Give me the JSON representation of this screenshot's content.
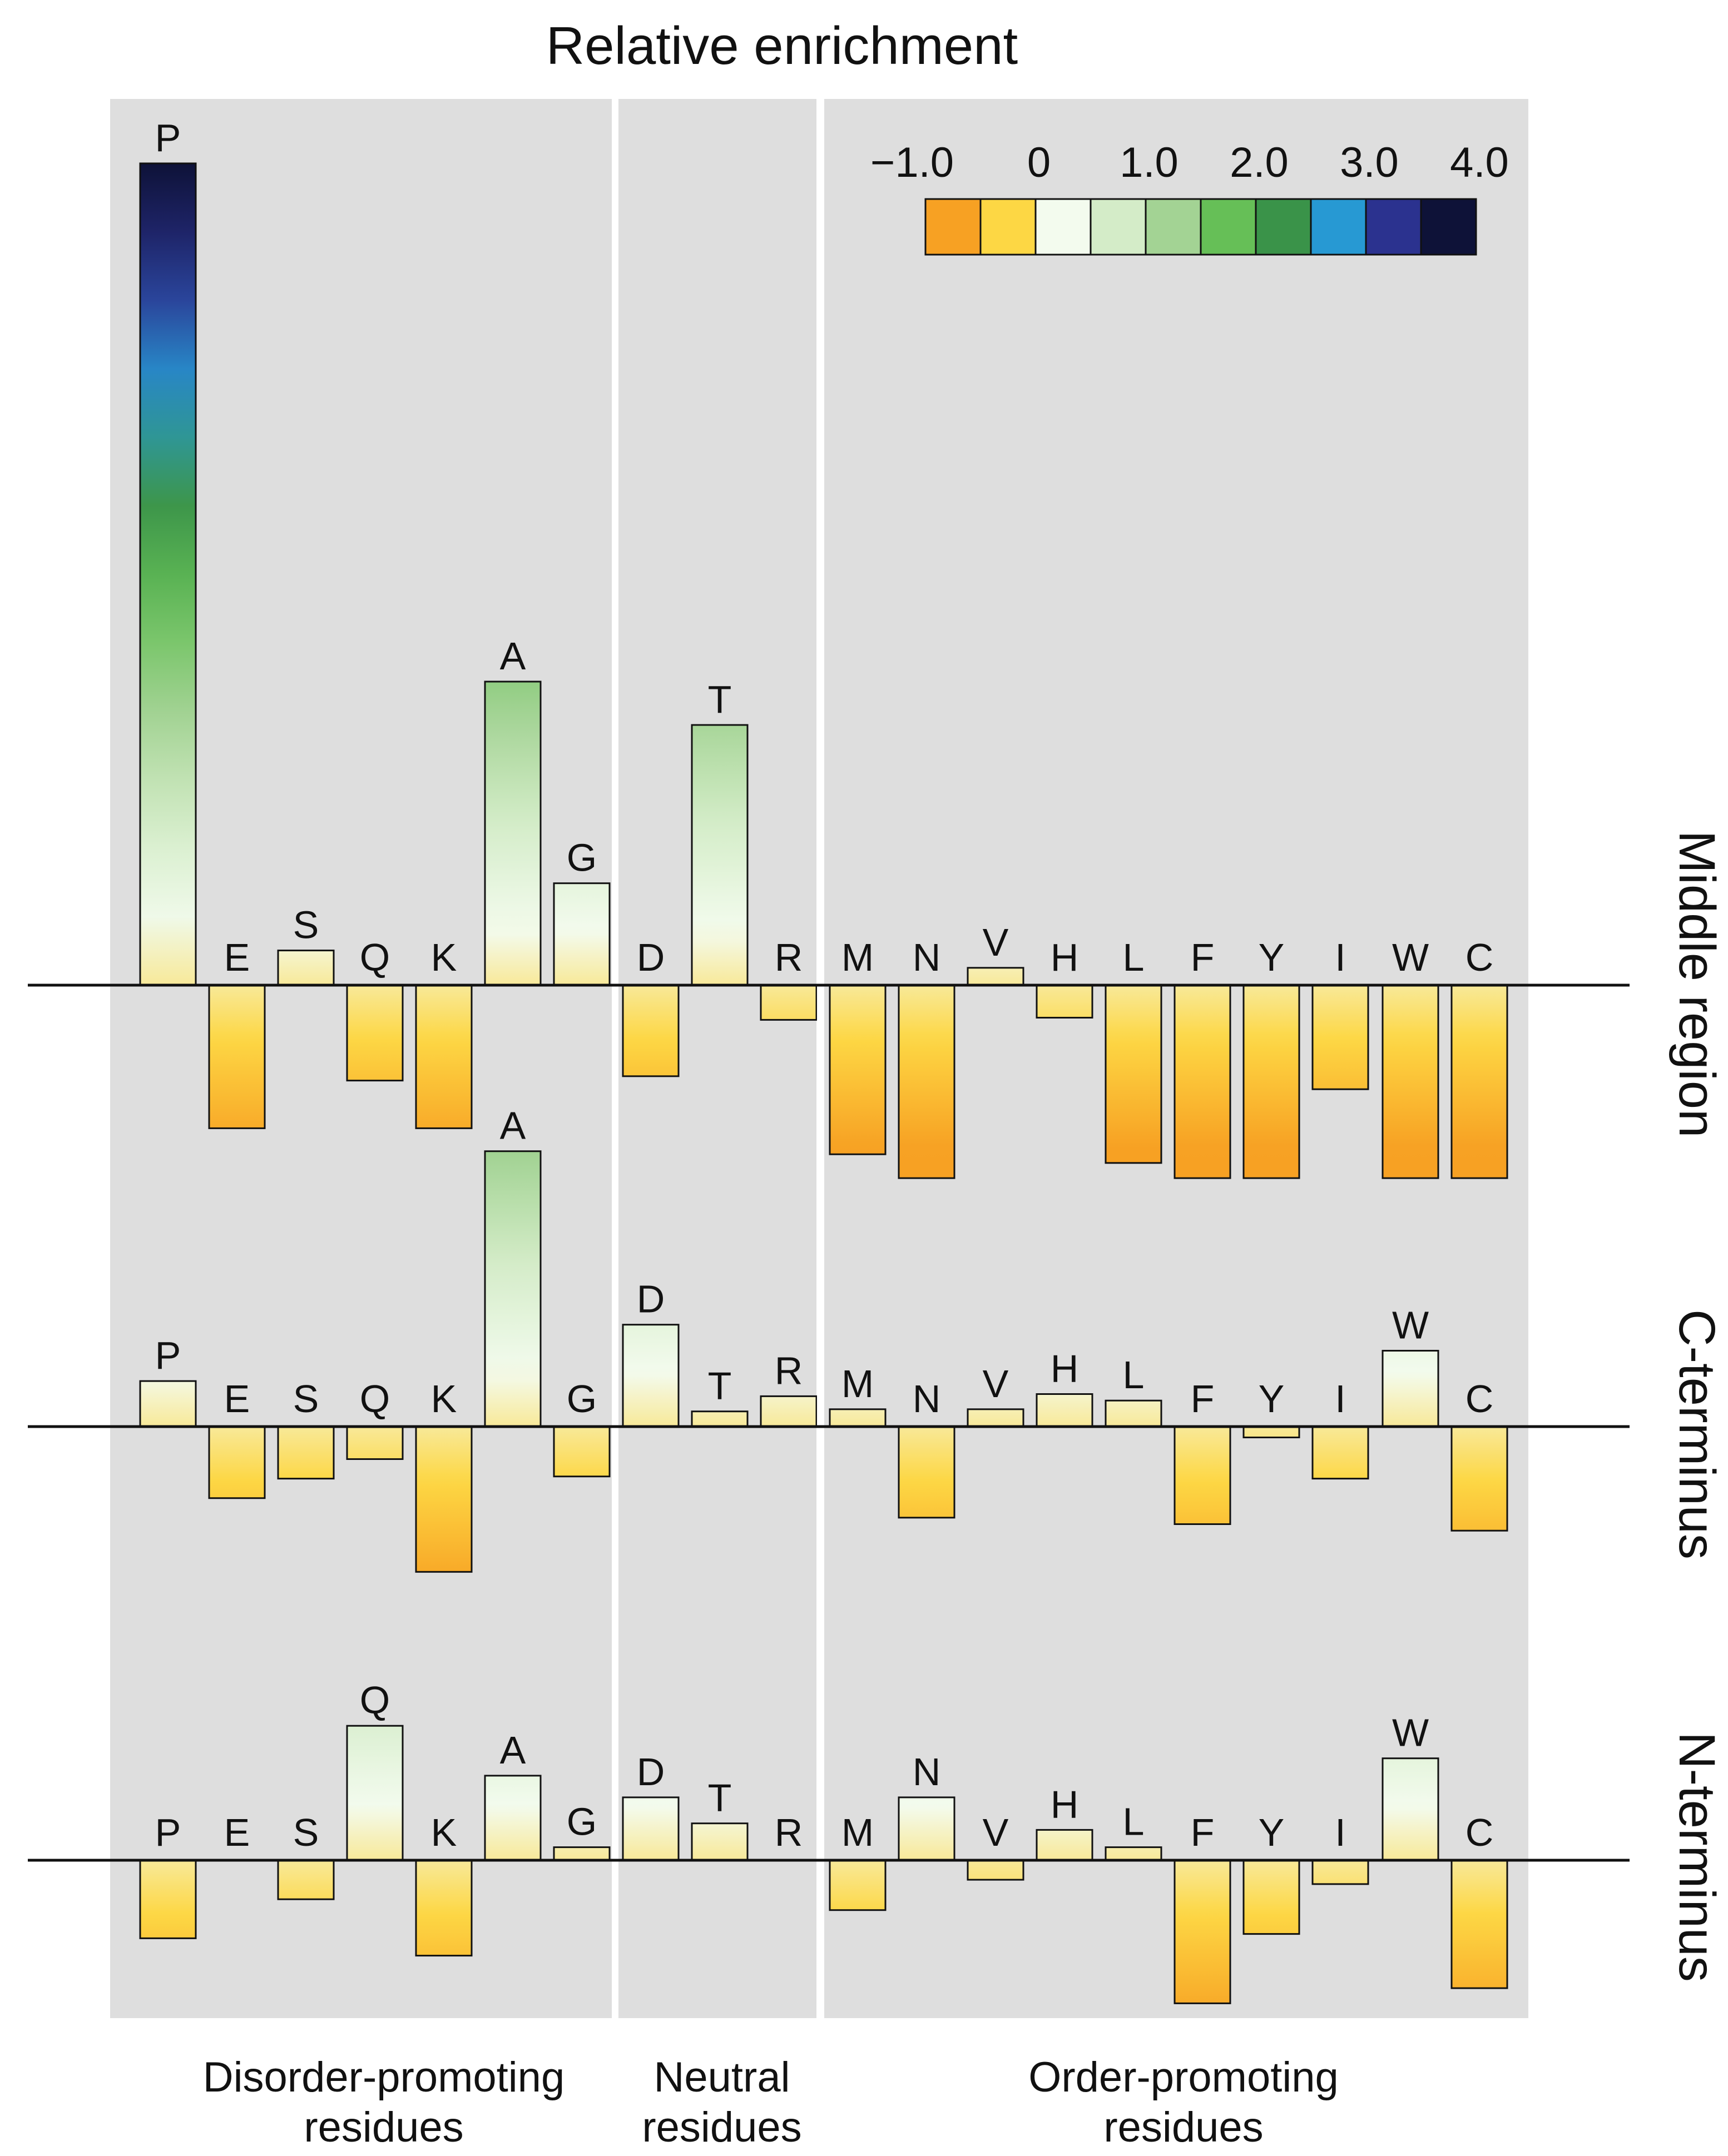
{
  "chart_data": {
    "type": "bar",
    "title": "Relative enrichment",
    "residues": [
      "P",
      "E",
      "S",
      "Q",
      "K",
      "A",
      "G",
      "D",
      "T",
      "R",
      "M",
      "N",
      "V",
      "H",
      "L",
      "F",
      "Y",
      "I",
      "W",
      "C"
    ],
    "groups": [
      {
        "name": "Disorder-promoting residues",
        "lines": [
          "Disorder-promoting",
          "residues"
        ],
        "members": [
          "P",
          "E",
          "S",
          "Q",
          "K",
          "A",
          "G"
        ]
      },
      {
        "name": "Neutral residues",
        "lines": [
          "Neutral",
          "residues"
        ],
        "members": [
          "D",
          "T",
          "R"
        ]
      },
      {
        "name": "Order-promoting residues",
        "lines": [
          "Order-promoting",
          "residues"
        ],
        "members": [
          "M",
          "N",
          "V",
          "H",
          "L",
          "F",
          "Y",
          "I",
          "W",
          "C"
        ]
      }
    ],
    "series": [
      {
        "name": "Middle region",
        "values": [
          3.79,
          -0.66,
          0.16,
          -0.44,
          -0.66,
          1.4,
          0.47,
          -0.42,
          1.2,
          -0.16,
          -0.78,
          -0.89,
          0.08,
          -0.15,
          -0.82,
          -0.89,
          -0.89,
          -0.48,
          -0.89,
          -0.89
        ]
      },
      {
        "name": "C-terminus",
        "values": [
          0.21,
          -0.33,
          -0.24,
          -0.15,
          -0.67,
          1.27,
          -0.23,
          0.47,
          0.07,
          0.14,
          0.08,
          -0.42,
          0.08,
          0.15,
          0.12,
          -0.45,
          -0.05,
          -0.24,
          0.35,
          -0.48
        ]
      },
      {
        "name": "N-terminus",
        "values": [
          -0.36,
          0.0,
          -0.18,
          0.62,
          -0.44,
          0.39,
          0.06,
          0.29,
          0.17,
          0.0,
          -0.23,
          0.29,
          -0.09,
          0.14,
          0.06,
          -0.66,
          -0.34,
          -0.11,
          0.47,
          -0.59
        ]
      }
    ],
    "colorscale": {
      "ticks": [
        "−1.0",
        "0",
        "1.0",
        "2.0",
        "3.0",
        "4.0"
      ],
      "colors": [
        "#f7a123",
        "#fdd744",
        "#f3fbee",
        "#d4ecc8",
        "#a3d394",
        "#66bf57",
        "#3a9349",
        "#2799d3",
        "#2b328f",
        "#0e1238"
      ]
    }
  }
}
